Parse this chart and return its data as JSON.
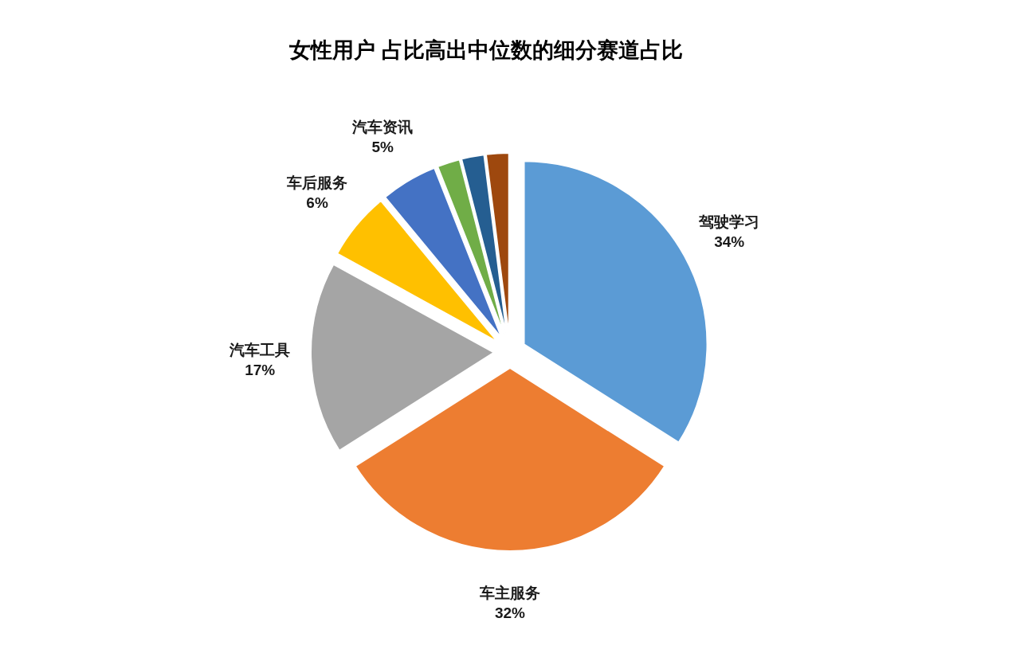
{
  "chart_data": {
    "type": "pie",
    "title": "女性用户 占比高出中位数的细分赛道占比",
    "categories": [
      "驾驶学习",
      "车主服务",
      "汽车工具",
      "车后服务",
      "汽车资讯",
      null,
      null,
      null
    ],
    "values": [
      34,
      32,
      17,
      6,
      5,
      2,
      2,
      2
    ],
    "colors": [
      "#5b9bd5",
      "#ed7d31",
      "#a5a5a5",
      "#ffc000",
      "#4472c4",
      "#70ad47",
      "#255e91",
      "#9e480e"
    ],
    "value_labels": [
      "34%",
      "32%",
      "17%",
      "6%",
      "5%",
      null,
      null,
      null
    ]
  }
}
